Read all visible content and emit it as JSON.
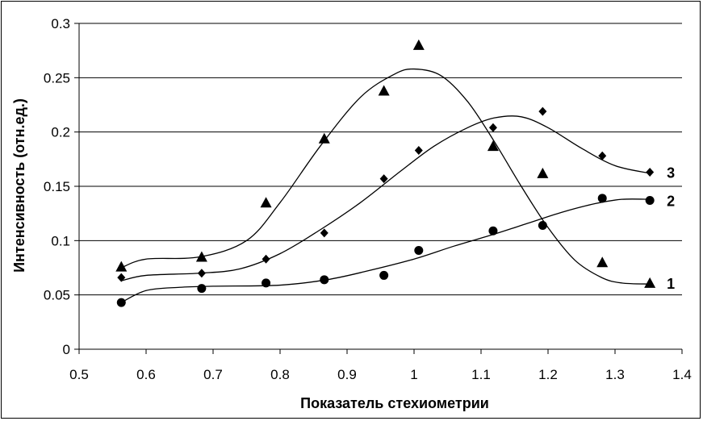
{
  "chart_data": {
    "type": "scatter",
    "xlabel": "Показатель стехиометрии",
    "ylabel": "Интенсивность (отн.ед.)",
    "xlim": [
      0.5,
      1.4
    ],
    "ylim": [
      0,
      0.3
    ],
    "x_ticks": [
      "0.5",
      "0.6",
      "0.7",
      "0.8",
      "0.9",
      "1",
      "1.1",
      "1.2",
      "1.3",
      "1.4"
    ],
    "y_ticks": [
      "0",
      "0.05",
      "0.1",
      "0.15",
      "0.2",
      "0.25",
      "0.3"
    ],
    "grid": "horizontal",
    "series": [
      {
        "name": "1",
        "marker": "triangle",
        "x": [
          0.563,
          0.683,
          0.779,
          0.866,
          0.955,
          1.007,
          1.118,
          1.192,
          1.281,
          1.352
        ],
        "y": [
          0.076,
          0.085,
          0.135,
          0.194,
          0.238,
          0.28,
          0.187,
          0.162,
          0.08,
          0.061
        ],
        "curve_x": [
          0.563,
          0.6,
          0.68,
          0.75,
          0.8,
          0.86,
          0.92,
          0.97,
          1.0,
          1.04,
          1.08,
          1.12,
          1.16,
          1.2,
          1.24,
          1.28,
          1.31,
          1.352
        ],
        "curve_y": [
          0.075,
          0.083,
          0.085,
          0.1,
          0.135,
          0.187,
          0.232,
          0.253,
          0.258,
          0.252,
          0.228,
          0.191,
          0.15,
          0.112,
          0.082,
          0.066,
          0.061,
          0.06
        ]
      },
      {
        "name": "2",
        "marker": "circle",
        "x": [
          0.563,
          0.683,
          0.779,
          0.866,
          0.955,
          1.007,
          1.118,
          1.192,
          1.281,
          1.352
        ],
        "y": [
          0.043,
          0.056,
          0.061,
          0.064,
          0.068,
          0.091,
          0.109,
          0.114,
          0.139,
          0.137
        ],
        "curve_x": [
          0.563,
          0.6,
          0.65,
          0.7,
          0.8,
          0.87,
          0.93,
          1.0,
          1.06,
          1.12,
          1.17,
          1.22,
          1.27,
          1.31,
          1.352
        ],
        "curve_y": [
          0.043,
          0.054,
          0.057,
          0.058,
          0.059,
          0.064,
          0.072,
          0.083,
          0.095,
          0.106,
          0.116,
          0.126,
          0.134,
          0.138,
          0.138
        ]
      },
      {
        "name": "3",
        "marker": "diamond",
        "x": [
          0.563,
          0.683,
          0.779,
          0.866,
          0.955,
          1.007,
          1.118,
          1.192,
          1.281,
          1.352
        ],
        "y": [
          0.066,
          0.07,
          0.083,
          0.107,
          0.157,
          0.183,
          0.204,
          0.219,
          0.178,
          0.163
        ],
        "curve_x": [
          0.563,
          0.6,
          0.68,
          0.74,
          0.8,
          0.86,
          0.92,
          0.98,
          1.03,
          1.08,
          1.12,
          1.16,
          1.2,
          1.25,
          1.3,
          1.352
        ],
        "curve_y": [
          0.063,
          0.068,
          0.07,
          0.074,
          0.088,
          0.11,
          0.135,
          0.164,
          0.187,
          0.204,
          0.213,
          0.214,
          0.204,
          0.185,
          0.169,
          0.162
        ]
      }
    ]
  }
}
